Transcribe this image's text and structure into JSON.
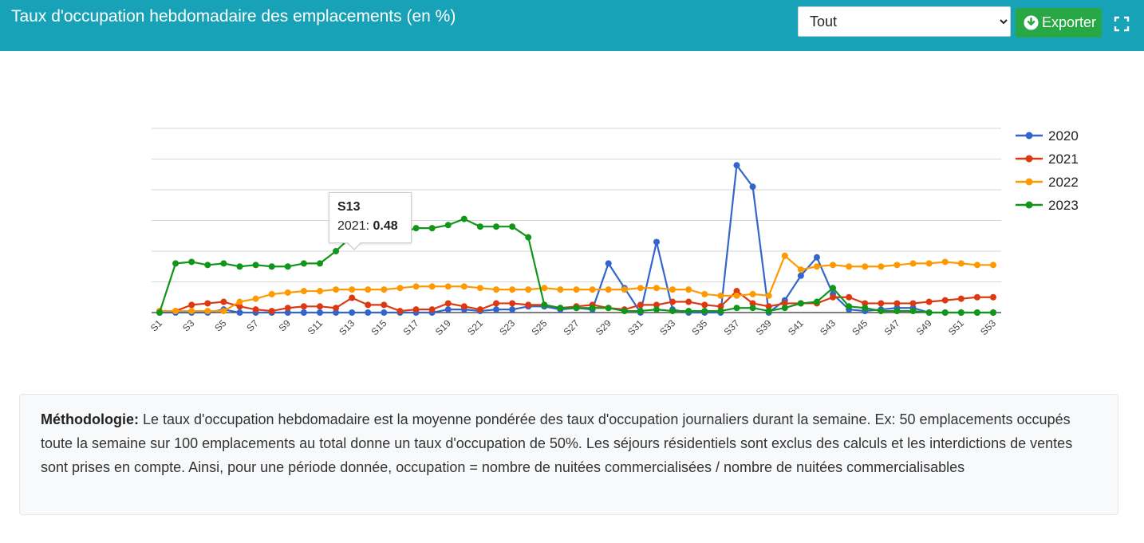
{
  "header": {
    "title": "Taux d'occupation hebdomadaire des emplacements (en %)",
    "select_value": "Tout",
    "select_options": [
      "Tout"
    ],
    "export_label": "Exporter"
  },
  "colors": {
    "header_bg": "#17a2b8",
    "export_bg": "#28a745",
    "series_2020": "#3366cc",
    "series_2021": "#dc3912",
    "series_2022": "#ff9900",
    "series_2023": "#109618"
  },
  "tooltip": {
    "title": "S13",
    "series": "2021",
    "value": "0.48"
  },
  "methodology": {
    "label": "Méthodologie:",
    "text": " Le taux d'occupation hebdomadaire est la moyenne pondérée des taux d'occupation journaliers durant la semaine. Ex: 50 emplacements occupés toute la semaine sur 100 emplacements au total donne un taux d'occupation de 50%. Les séjours résidentiels sont exclus des calculs et les interdictions de ventes sont prises en compte. Ainsi, pour une période donnée, occupation = nombre de nuitées commercialisées / nombre de nuitées commercialisables"
  },
  "chart_data": {
    "type": "line",
    "title": "",
    "xlabel": "",
    "ylabel": "",
    "x": [
      "S1",
      "S2",
      "S3",
      "S4",
      "S5",
      "S6",
      "S7",
      "S8",
      "S9",
      "S10",
      "S11",
      "S12",
      "S13",
      "S14",
      "S15",
      "S16",
      "S17",
      "S18",
      "S19",
      "S20",
      "S21",
      "S22",
      "S23",
      "S24",
      "S25",
      "S26",
      "S27",
      "S28",
      "S29",
      "S30",
      "S31",
      "S32",
      "S33",
      "S34",
      "S35",
      "S36",
      "S37",
      "S38",
      "S39",
      "S40",
      "S41",
      "S42",
      "S43",
      "S44",
      "S45",
      "S46",
      "S47",
      "S48",
      "S49",
      "S50",
      "S51",
      "S52",
      "S53"
    ],
    "tick_labels": [
      "S1",
      "S3",
      "S5",
      "S7",
      "S9",
      "S11",
      "S13",
      "S15",
      "S17",
      "S19",
      "S21",
      "S23",
      "S25",
      "S27",
      "S29",
      "S31",
      "S33",
      "S35",
      "S37",
      "S39",
      "S41",
      "S43",
      "S45",
      "S47",
      "S49",
      "S51",
      "S53"
    ],
    "ylim": [
      0,
      6
    ],
    "y_grid_lines": 6,
    "legend": "right",
    "series": [
      {
        "name": "2020",
        "values": [
          0,
          0,
          0,
          0,
          0.1,
          0,
          0,
          0,
          0,
          0,
          0,
          0,
          0,
          0,
          0,
          0,
          0,
          0,
          0.1,
          0.1,
          0.05,
          0.1,
          0.1,
          0.2,
          0.2,
          0.1,
          0.15,
          0.1,
          1.6,
          0.8,
          0,
          2.3,
          0.1,
          0,
          0,
          0,
          4.8,
          4.1,
          0,
          0.4,
          1.2,
          1.8,
          0.6,
          0.1,
          0.05,
          0.1,
          0.15,
          0.15,
          0,
          0,
          0,
          0,
          0
        ]
      },
      {
        "name": "2021",
        "values": [
          0.05,
          0.05,
          0.25,
          0.3,
          0.35,
          0.2,
          0.1,
          0.05,
          0.15,
          0.2,
          0.2,
          0.15,
          0.48,
          0.25,
          0.25,
          0.05,
          0.1,
          0.1,
          0.3,
          0.2,
          0.1,
          0.3,
          0.3,
          0.25,
          0.25,
          0.15,
          0.2,
          0.25,
          0.15,
          0.1,
          0.25,
          0.25,
          0.35,
          0.35,
          0.25,
          0.2,
          0.7,
          0.3,
          0.2,
          0.3,
          0.3,
          0.3,
          0.5,
          0.5,
          0.3,
          0.3,
          0.3,
          0.3,
          0.35,
          0.4,
          0.45,
          0.5,
          0.5
        ]
      },
      {
        "name": "2022",
        "values": [
          0.05,
          0.05,
          0.05,
          0.05,
          0.05,
          0.35,
          0.45,
          0.6,
          0.65,
          0.7,
          0.7,
          0.75,
          0.75,
          0.75,
          0.75,
          0.8,
          0.85,
          0.85,
          0.85,
          0.85,
          0.8,
          0.75,
          0.75,
          0.75,
          0.8,
          0.75,
          0.75,
          0.75,
          0.75,
          0.75,
          0.8,
          0.8,
          0.75,
          0.75,
          0.6,
          0.55,
          0.55,
          0.6,
          0.55,
          1.85,
          1.4,
          1.5,
          1.55,
          1.5,
          1.5,
          1.5,
          1.55,
          1.6,
          1.6,
          1.65,
          1.6,
          1.55,
          1.55
        ]
      },
      {
        "name": "2023",
        "values": [
          0,
          1.6,
          1.65,
          1.55,
          1.6,
          1.5,
          1.55,
          1.5,
          1.5,
          1.6,
          1.6,
          2.0,
          2.5,
          2.55,
          2.65,
          2.6,
          2.75,
          2.75,
          2.85,
          3.05,
          2.8,
          2.8,
          2.8,
          2.45,
          0.25,
          0.15,
          0.15,
          0.15,
          0.15,
          0.05,
          0.05,
          0.1,
          0.05,
          0.05,
          0.05,
          0.05,
          0.15,
          0.15,
          0.05,
          0.15,
          0.3,
          0.35,
          0.8,
          0.2,
          0.15,
          0.05,
          0.05,
          0.05,
          0,
          0,
          0,
          0,
          0
        ]
      }
    ]
  }
}
